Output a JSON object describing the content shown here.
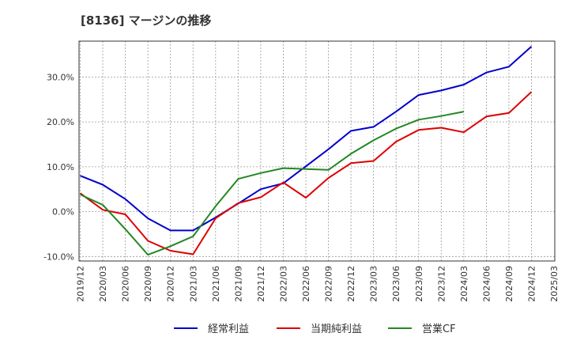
{
  "chart_data": {
    "type": "line",
    "title": "[8136]  マージンの推移",
    "xlabel": "",
    "ylabel": "",
    "ylim": [
      -11,
      38
    ],
    "yticks": [
      -10,
      0,
      10,
      20,
      30
    ],
    "ytick_labels": [
      "-10.0%",
      "0.0%",
      "10.0%",
      "20.0%",
      "30.0%"
    ],
    "x": [
      "2019/12",
      "2020/03",
      "2020/06",
      "2020/09",
      "2020/12",
      "2021/03",
      "2021/06",
      "2021/09",
      "2021/12",
      "2022/03",
      "2022/06",
      "2022/09",
      "2022/12",
      "2023/03",
      "2023/06",
      "2023/09",
      "2023/12",
      "2024/03",
      "2024/06",
      "2024/09",
      "2024/12",
      "2025/03"
    ],
    "grid": true,
    "legend_position": "bottom",
    "series": [
      {
        "name": "経常利益",
        "color": "#0000cc",
        "values": [
          8.0,
          6.0,
          2.8,
          -1.5,
          -4.2,
          -4.2,
          -1.3,
          1.8,
          5.0,
          6.3,
          10.1,
          13.9,
          18.0,
          18.9,
          22.3,
          26.0,
          27.0,
          28.3,
          31.0,
          32.3,
          36.8,
          null
        ]
      },
      {
        "name": "当期純利益",
        "color": "#dd0000",
        "values": [
          4.1,
          0.4,
          -0.6,
          -6.5,
          -8.7,
          -9.5,
          -1.5,
          1.9,
          3.2,
          6.5,
          3.1,
          7.5,
          10.8,
          11.3,
          15.6,
          18.2,
          18.7,
          17.7,
          21.2,
          22.0,
          26.7,
          null
        ]
      },
      {
        "name": "営業CF",
        "color": "#228822",
        "values": [
          3.8,
          1.5,
          -3.9,
          -9.6,
          -7.7,
          -5.5,
          1.2,
          7.3,
          8.6,
          9.7,
          9.5,
          9.3,
          12.9,
          15.9,
          18.5,
          20.5,
          21.3,
          22.3,
          null,
          null,
          null,
          null
        ]
      }
    ]
  }
}
